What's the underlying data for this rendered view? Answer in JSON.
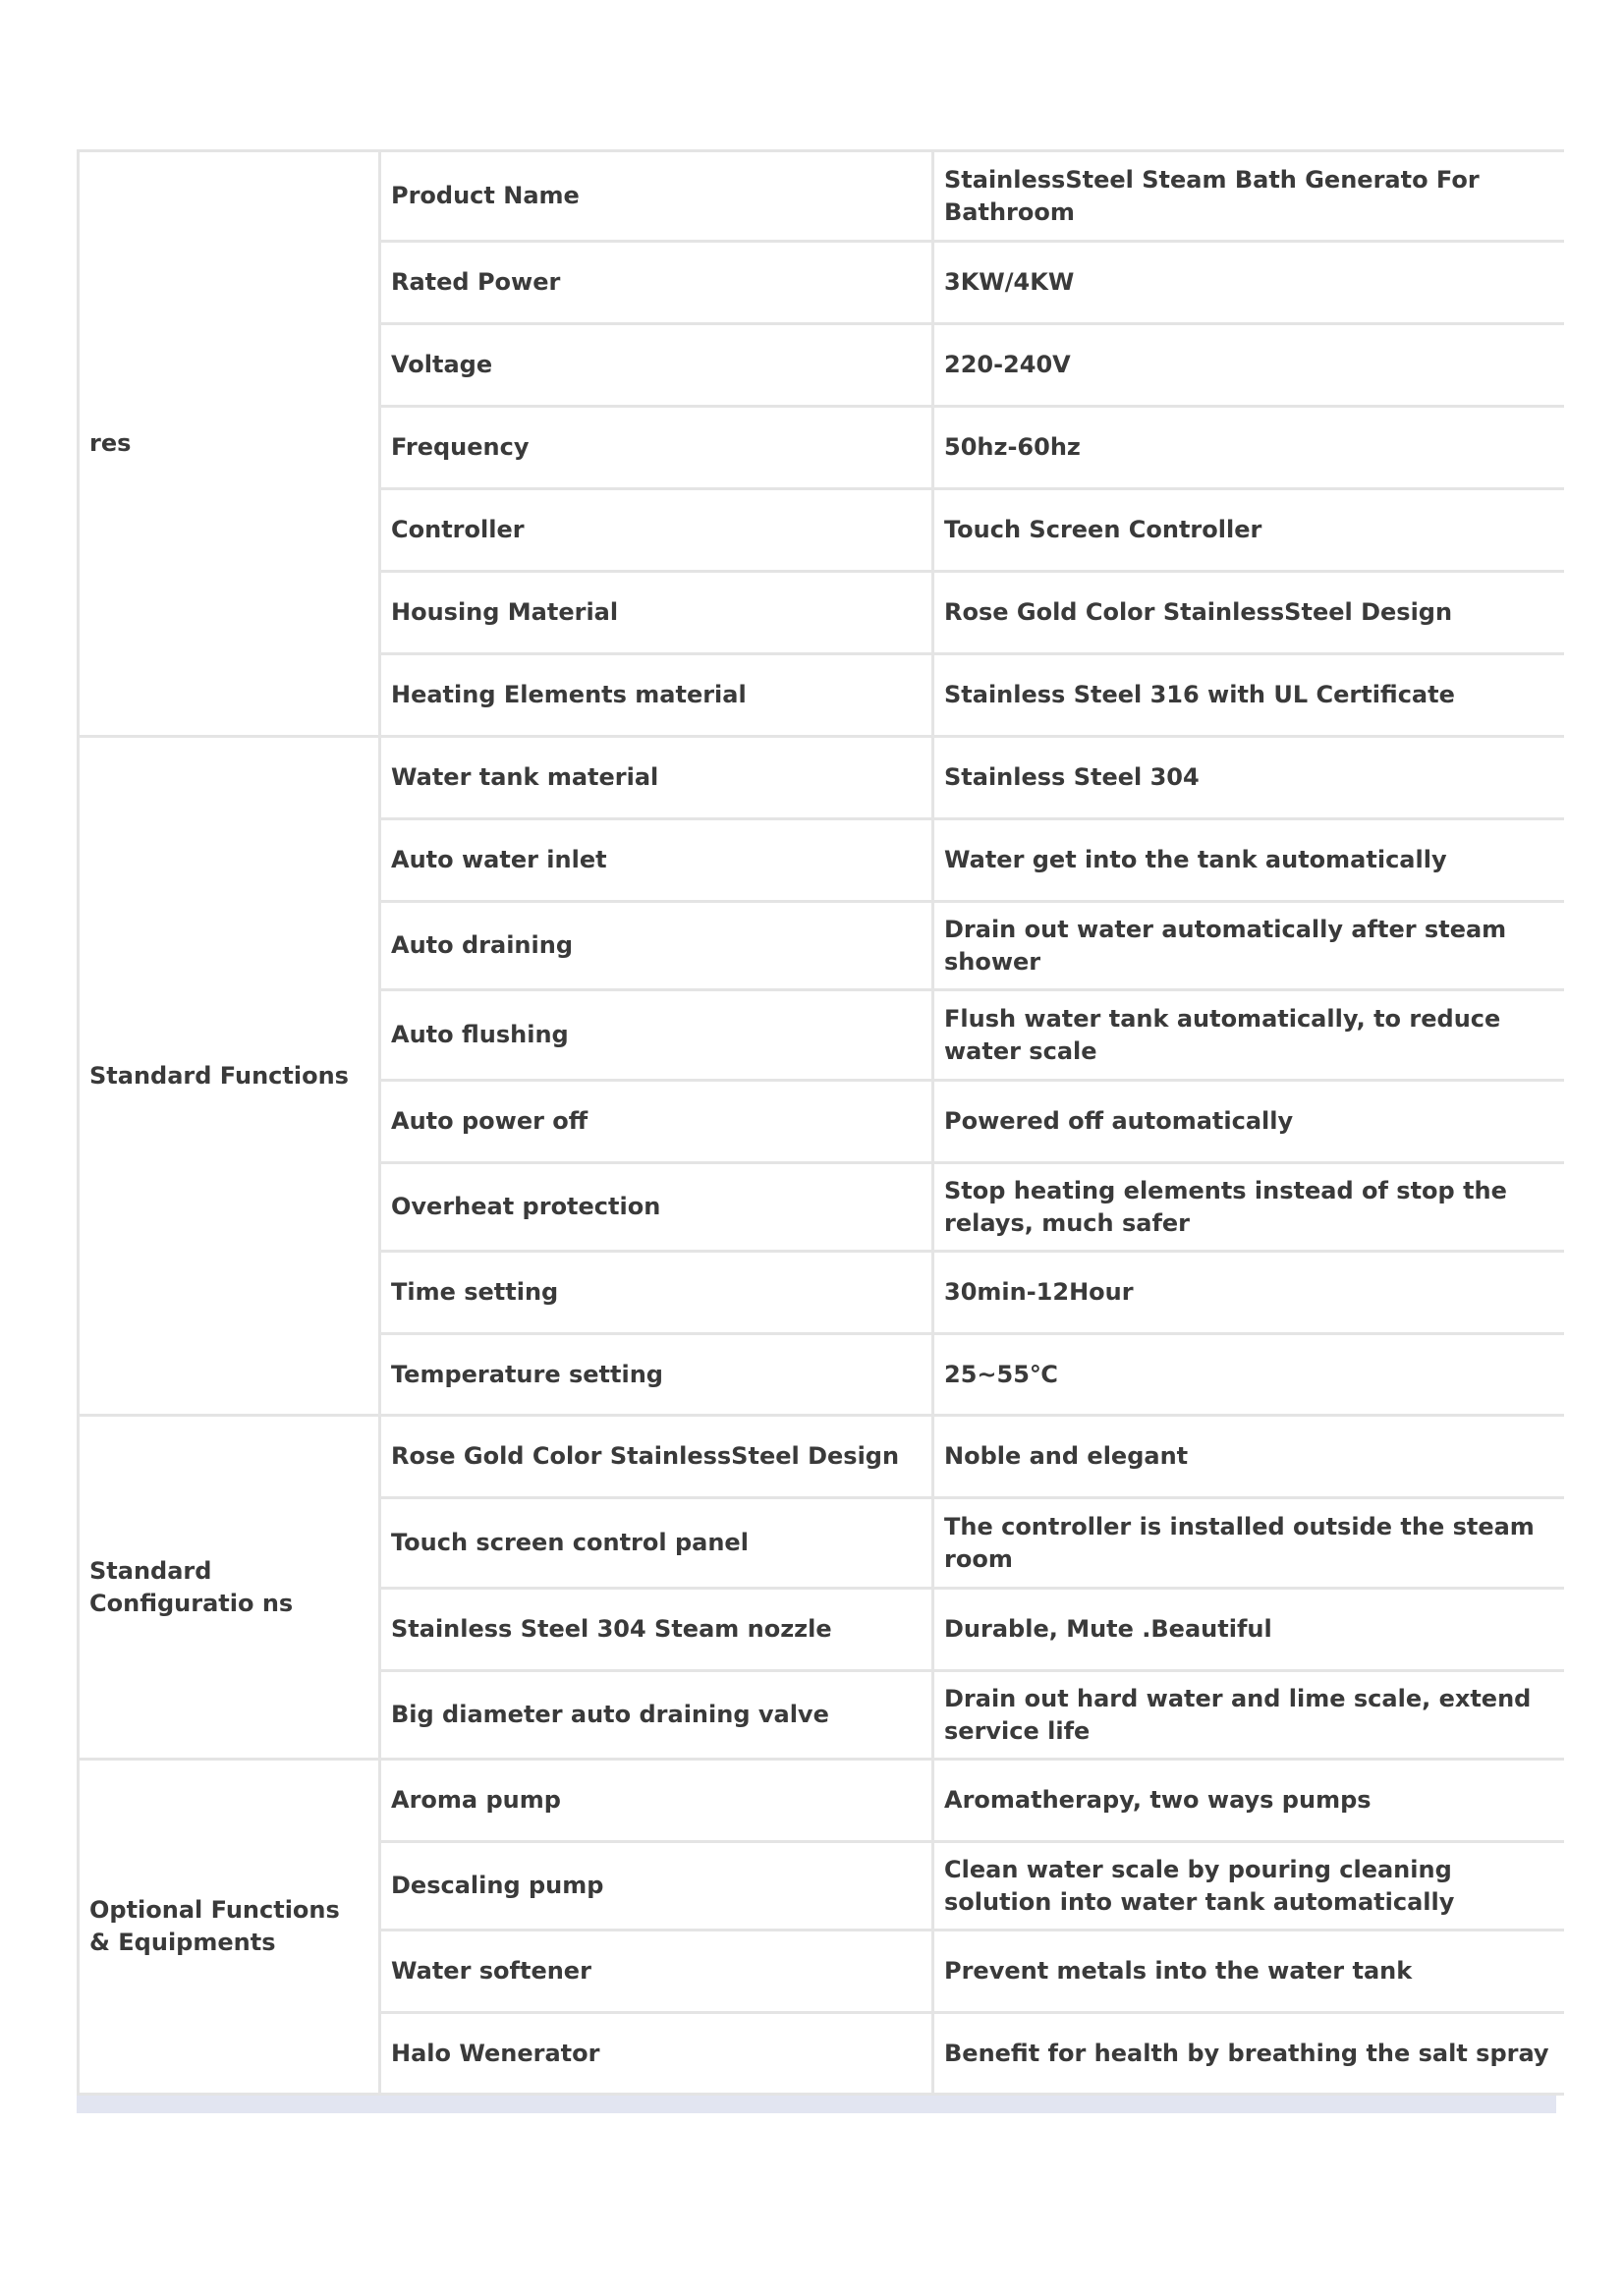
{
  "groups": [
    {
      "label": "res",
      "rows": [
        {
          "name": "Product Name",
          "value": "StainlessSteel Steam Bath Generato For Bathroom"
        },
        {
          "name": "Rated Power",
          "value": "3KW/4KW"
        },
        {
          "name": "Voltage",
          "value": "220-240V"
        },
        {
          "name": "Frequency",
          "value": "50hz-60hz"
        },
        {
          "name": "Controller",
          "value": "Touch Screen Controller"
        },
        {
          "name": "Housing Material",
          "value": "Rose Gold Color StainlessSteel Design"
        },
        {
          "name": "Heating Elements material",
          "value": "Stainless Steel 316 with UL Certificate"
        }
      ]
    },
    {
      "label": "Standard Functions",
      "rows": [
        {
          "name": "Water tank material",
          "value": "Stainless Steel 304"
        },
        {
          "name": "Auto water inlet",
          "value": "Water get into the tank automatically"
        },
        {
          "name": "Auto draining",
          "value": "Drain out water automatically after steam shower"
        },
        {
          "name": "Auto flushing",
          "value": "Flush water tank automatically, to reduce water scale"
        },
        {
          "name": "Auto power off",
          "value": "Powered off automatically"
        },
        {
          "name": "Overheat protection",
          "value": "Stop heating elements instead of stop the relays, much safer"
        },
        {
          "name": "Time setting",
          "value": "30min-12Hour"
        },
        {
          "name": "Temperature setting",
          "value": "25~55℃"
        }
      ]
    },
    {
      "label": "Standard Configuratio ns",
      "rows": [
        {
          "name": "Rose Gold Color StainlessSteel Design",
          "value": "Noble and elegant"
        },
        {
          "name": "Touch screen control panel",
          "value": "The controller is installed outside the steam room"
        },
        {
          "name": "Stainless Steel 304 Steam nozzle",
          "value": "Durable, Mute .Beautiful"
        },
        {
          "name": "Big diameter auto draining valve",
          "value": "Drain out hard water and lime scale, extend service life"
        }
      ]
    },
    {
      "label": "Optional Functions & Equipments",
      "rows": [
        {
          "name": "Aroma pump",
          "value": "Aromatherapy, two ways pumps"
        },
        {
          "name": "Descaling pump",
          "value": "Clean water scale by pouring cleaning solution into water tank automatically"
        },
        {
          "name": "Water softener",
          "value": "Prevent metals into the water tank"
        },
        {
          "name": "Halo Wenerator",
          "value": "Benefit for health by breathing the salt spray"
        }
      ]
    }
  ]
}
